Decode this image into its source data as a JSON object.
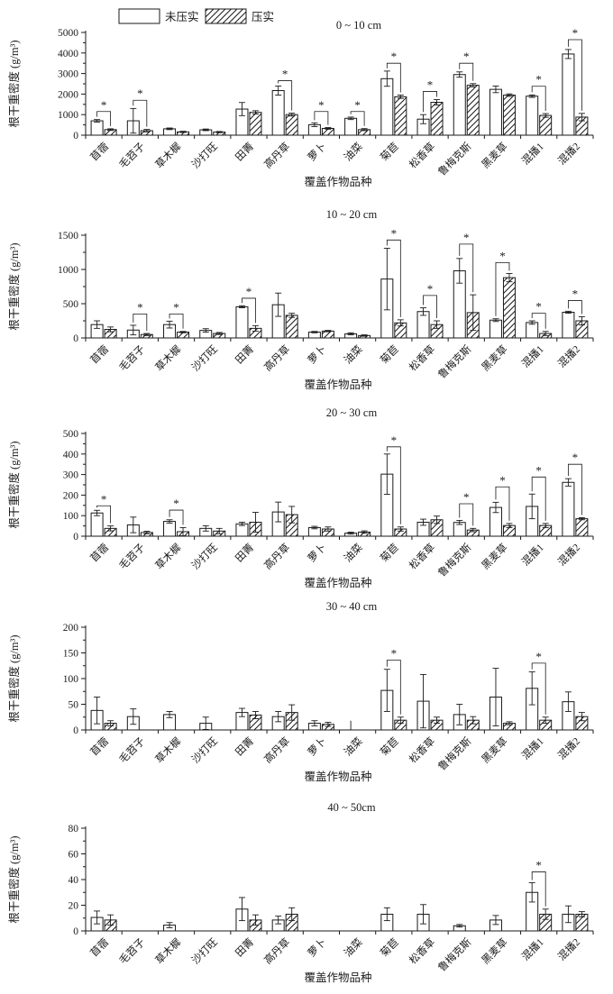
{
  "figure": {
    "background": "#ffffff",
    "ink_color": "#1a1a1a",
    "sig_marker": "*"
  },
  "chart_data": {
    "type": "bar",
    "xlabel": "覆盖作物品种",
    "ylabel": "根干重密度 (g/m³)",
    "legend": [
      "未压实",
      "压实"
    ],
    "legend_styles": [
      "open-bar",
      "hatched-bar"
    ],
    "grid": false,
    "categories": [
      "苜蓿",
      "毛苕子",
      "草木樨",
      "沙打旺",
      "田菁",
      "高丹草",
      "萝卜",
      "油菜",
      "菊苣",
      "松香草",
      "鲁梅克斯",
      "黑麦草",
      "混播1",
      "混播2"
    ],
    "panels": [
      {
        "title": "0 ~ 10 cm",
        "ylim": [
          0,
          5000
        ],
        "ytick_step": 1000,
        "series": [
          {
            "name": "未压实",
            "values": [
              700,
              700,
              310,
              260,
              1270,
              2170,
              510,
              820,
              2750,
              780,
              2950,
              2230,
              1900,
              3950
            ],
            "errors": [
              60,
              600,
              40,
              40,
              320,
              220,
              90,
              60,
              370,
              220,
              130,
              160,
              60,
              220
            ]
          },
          {
            "name": "压实",
            "values": [
              270,
              220,
              160,
              150,
              1110,
              1000,
              330,
              270,
              1870,
              1600,
              2430,
              1950,
              960,
              880
            ],
            "errors": [
              40,
              60,
              30,
              30,
              80,
              70,
              40,
              50,
              80,
              130,
              80,
              60,
              90,
              180
            ]
          }
        ],
        "significance": [
          {
            "index": 0,
            "bracket_y": 1150
          },
          {
            "index": 1,
            "bracket_y": 1700
          },
          {
            "index": 5,
            "bracket_y": 2650
          },
          {
            "index": 6,
            "bracket_y": 1150
          },
          {
            "index": 7,
            "bracket_y": 1150
          },
          {
            "index": 8,
            "bracket_y": 3500
          },
          {
            "index": 9,
            "bracket_y": 2130
          },
          {
            "index": 10,
            "bracket_y": 3500
          },
          {
            "index": 12,
            "bracket_y": 2380
          },
          {
            "index": 13,
            "bracket_y": 4650
          }
        ]
      },
      {
        "title": "10 ~ 20 cm",
        "ylim": [
          0,
          1500
        ],
        "ytick_step": 500,
        "series": [
          {
            "name": "未压实",
            "values": [
              195,
              115,
              195,
              110,
              455,
              485,
              85,
              60,
              860,
              385,
              980,
              260,
              225,
              375
            ],
            "errors": [
              55,
              70,
              50,
              25,
              15,
              170,
              10,
              15,
              450,
              55,
              180,
              20,
              25,
              15
            ]
          },
          {
            "name": "压实",
            "values": [
              125,
              50,
              85,
              65,
              140,
              330,
              100,
              35,
              220,
              195,
              370,
              880,
              65,
              250
            ],
            "errors": [
              35,
              15,
              10,
              15,
              40,
              30,
              10,
              10,
              45,
              55,
              260,
              60,
              30,
              60
            ]
          }
        ],
        "significance": [
          {
            "index": 1,
            "bracket_y": 350
          },
          {
            "index": 2,
            "bracket_y": 350
          },
          {
            "index": 4,
            "bracket_y": 580
          },
          {
            "index": 8,
            "bracket_y": 1430
          },
          {
            "index": 9,
            "bracket_y": 620
          },
          {
            "index": 10,
            "bracket_y": 1370
          },
          {
            "index": 11,
            "bracket_y": 1100
          },
          {
            "index": 12,
            "bracket_y": 360
          },
          {
            "index": 13,
            "bracket_y": 545
          }
        ]
      },
      {
        "title": "20 ~ 30 cm",
        "ylim": [
          0,
          500
        ],
        "ytick_step": 100,
        "series": [
          {
            "name": "未压实",
            "values": [
              113,
              55,
              72,
              38,
              60,
              118,
              42,
              15,
              302,
              68,
              67,
              140,
              145,
              262
            ],
            "errors": [
              13,
              38,
              8,
              13,
              8,
              48,
              6,
              5,
              98,
              15,
              10,
              25,
              60,
              18
            ]
          },
          {
            "name": "压实",
            "values": [
              38,
              18,
              22,
              25,
              68,
              105,
              35,
              20,
              35,
              80,
              30,
              52,
              52,
              85
            ],
            "errors": [
              12,
              6,
              20,
              13,
              48,
              40,
              10,
              6,
              10,
              18,
              8,
              10,
              10,
              5
            ]
          }
        ],
        "significance": [
          {
            "index": 0,
            "bracket_y": 148
          },
          {
            "index": 2,
            "bracket_y": 127
          },
          {
            "index": 8,
            "bracket_y": 435
          },
          {
            "index": 10,
            "bracket_y": 158
          },
          {
            "index": 11,
            "bracket_y": 240
          },
          {
            "index": 12,
            "bracket_y": 288
          },
          {
            "index": 13,
            "bracket_y": 350
          }
        ]
      },
      {
        "title": "30 ~ 40 cm",
        "ylim": [
          0,
          200
        ],
        "ytick_step": 50,
        "series": [
          {
            "name": "未压实",
            "values": [
              38,
              26,
              30,
              13,
              34,
              26,
              13,
              0,
              77,
              56,
              30,
              64,
              81,
              55
            ],
            "errors": [
              26,
              15,
              6,
              12,
              8,
              10,
              5,
              18,
              41,
              52,
              20,
              56,
              32,
              19
            ]
          },
          {
            "name": "压实",
            "values": [
              13,
              0,
              0,
              0,
              29,
              34,
              11,
              0,
              19,
              19,
              19,
              13,
              19,
              26
            ],
            "errors": [
              5,
              0,
              0,
              0,
              7,
              15,
              4,
              0,
              6,
              6,
              7,
              3,
              6,
              8
            ]
          }
        ],
        "significance": [
          {
            "index": 8,
            "bracket_y": 136
          },
          {
            "index": 12,
            "bracket_y": 130
          }
        ]
      },
      {
        "title": "40 ~ 50cm",
        "ylim": [
          0,
          80
        ],
        "ytick_step": 20,
        "series": [
          {
            "name": "未压实",
            "values": [
              10.5,
              0,
              4.5,
              0,
              17,
              8.5,
              0,
              0,
              13,
              13,
              4,
              8.5,
              30,
              13
            ],
            "errors": [
              5,
              0,
              2,
              0,
              9,
              3,
              0,
              0,
              5,
              7.5,
              1,
              3.5,
              7.5,
              6.5
            ]
          },
          {
            "name": "压实",
            "values": [
              8.5,
              0,
              0,
              0,
              8.5,
              13,
              0,
              0,
              0,
              0,
              0,
              0,
              13,
              13
            ],
            "errors": [
              4,
              0,
              0,
              0,
              4,
              5,
              0,
              0,
              0,
              0,
              0,
              0,
              4,
              2
            ]
          }
        ],
        "significance": [
          {
            "index": 12,
            "bracket_y": 46
          }
        ]
      }
    ]
  }
}
